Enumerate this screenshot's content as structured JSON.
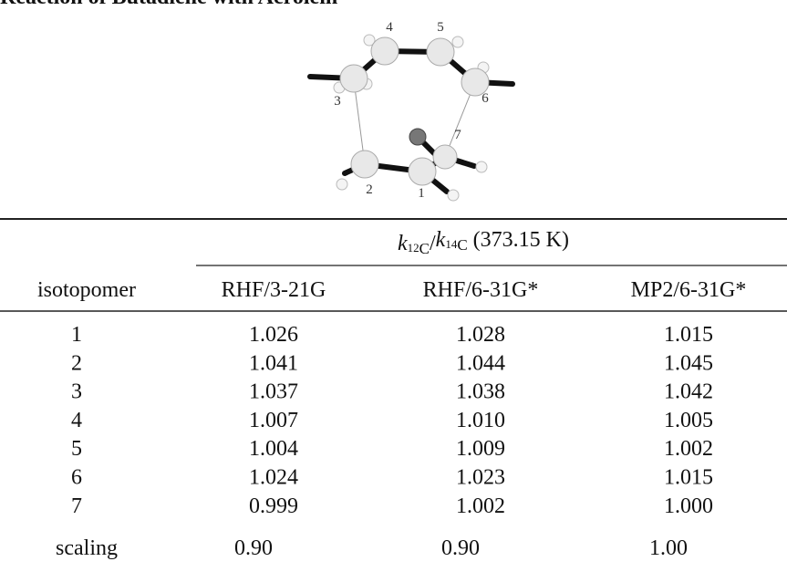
{
  "header": {
    "title": "Reaction of Butadiene with Acrolein"
  },
  "molecule": {
    "labels": [
      "3",
      "4",
      "5",
      "6",
      "7",
      "2",
      "1"
    ]
  },
  "table": {
    "group_header": [
      "k",
      "12",
      "C",
      "/",
      "k",
      "14",
      "C",
      " (373.15 K)"
    ],
    "columns": [
      "isotopomer",
      "RHF/3-21G",
      "RHF/6-31G*",
      "MP2/6-31G*"
    ],
    "rows": [
      [
        "1",
        "1.026",
        "1.028",
        "1.015"
      ],
      [
        "2",
        "1.041",
        "1.044",
        "1.045"
      ],
      [
        "3",
        "1.037",
        "1.038",
        "1.042"
      ],
      [
        "4",
        "1.007",
        "1.010",
        "1.005"
      ],
      [
        "5",
        "1.004",
        "1.009",
        "1.002"
      ],
      [
        "6",
        "1.024",
        "1.023",
        "1.015"
      ],
      [
        "7",
        "0.999",
        "1.002",
        "1.000"
      ],
      [
        "scaling",
        "0.90",
        "0.90",
        "1.00"
      ]
    ]
  }
}
